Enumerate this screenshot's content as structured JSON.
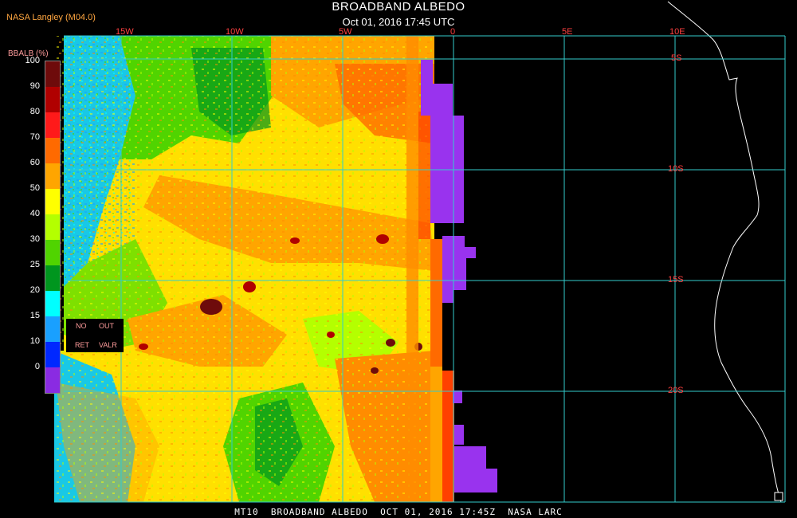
{
  "header": {
    "title": "BROADBAND ALBEDO",
    "subtitle": "Oct 01, 2016 17:45 UTC",
    "producer": "NASA Langley (M04.0)"
  },
  "legend": {
    "units": "BBALB (%)",
    "ticks": [
      "100",
      "90",
      "80",
      "70",
      "60",
      "50",
      "40",
      "30",
      "25",
      "20",
      "15",
      "10",
      "0"
    ],
    "colors": [
      "#6e0b0b",
      "#b00000",
      "#ff1a1a",
      "#ff6a00",
      "#ffa500",
      "#ffff00",
      "#b4ff00",
      "#50d400",
      "#00961e",
      "#00ffff",
      "#19a0ff",
      "#0028ff",
      "#8a2be2"
    ],
    "no_ret": {
      "line1_left": "NO",
      "line1_right": "OUT",
      "line2_left": "RET",
      "line2_right": "VALR"
    }
  },
  "axes": {
    "longitude_labels": [
      "15W",
      "10W",
      "5W",
      "0",
      "5E",
      "10E"
    ],
    "latitude_labels": [
      "5S",
      "10S",
      "15S",
      "20S"
    ]
  },
  "colors": {
    "grid": "#33cccc",
    "no_retrieval": "#9933ee",
    "coast": "#ffffff",
    "label_red": "#ff4040",
    "label_orange": "#ffa640"
  },
  "footer": {
    "text": "MT10  BROADBAND ALBEDO  OCT 01, 2016 17:45Z  NASA LARC"
  }
}
